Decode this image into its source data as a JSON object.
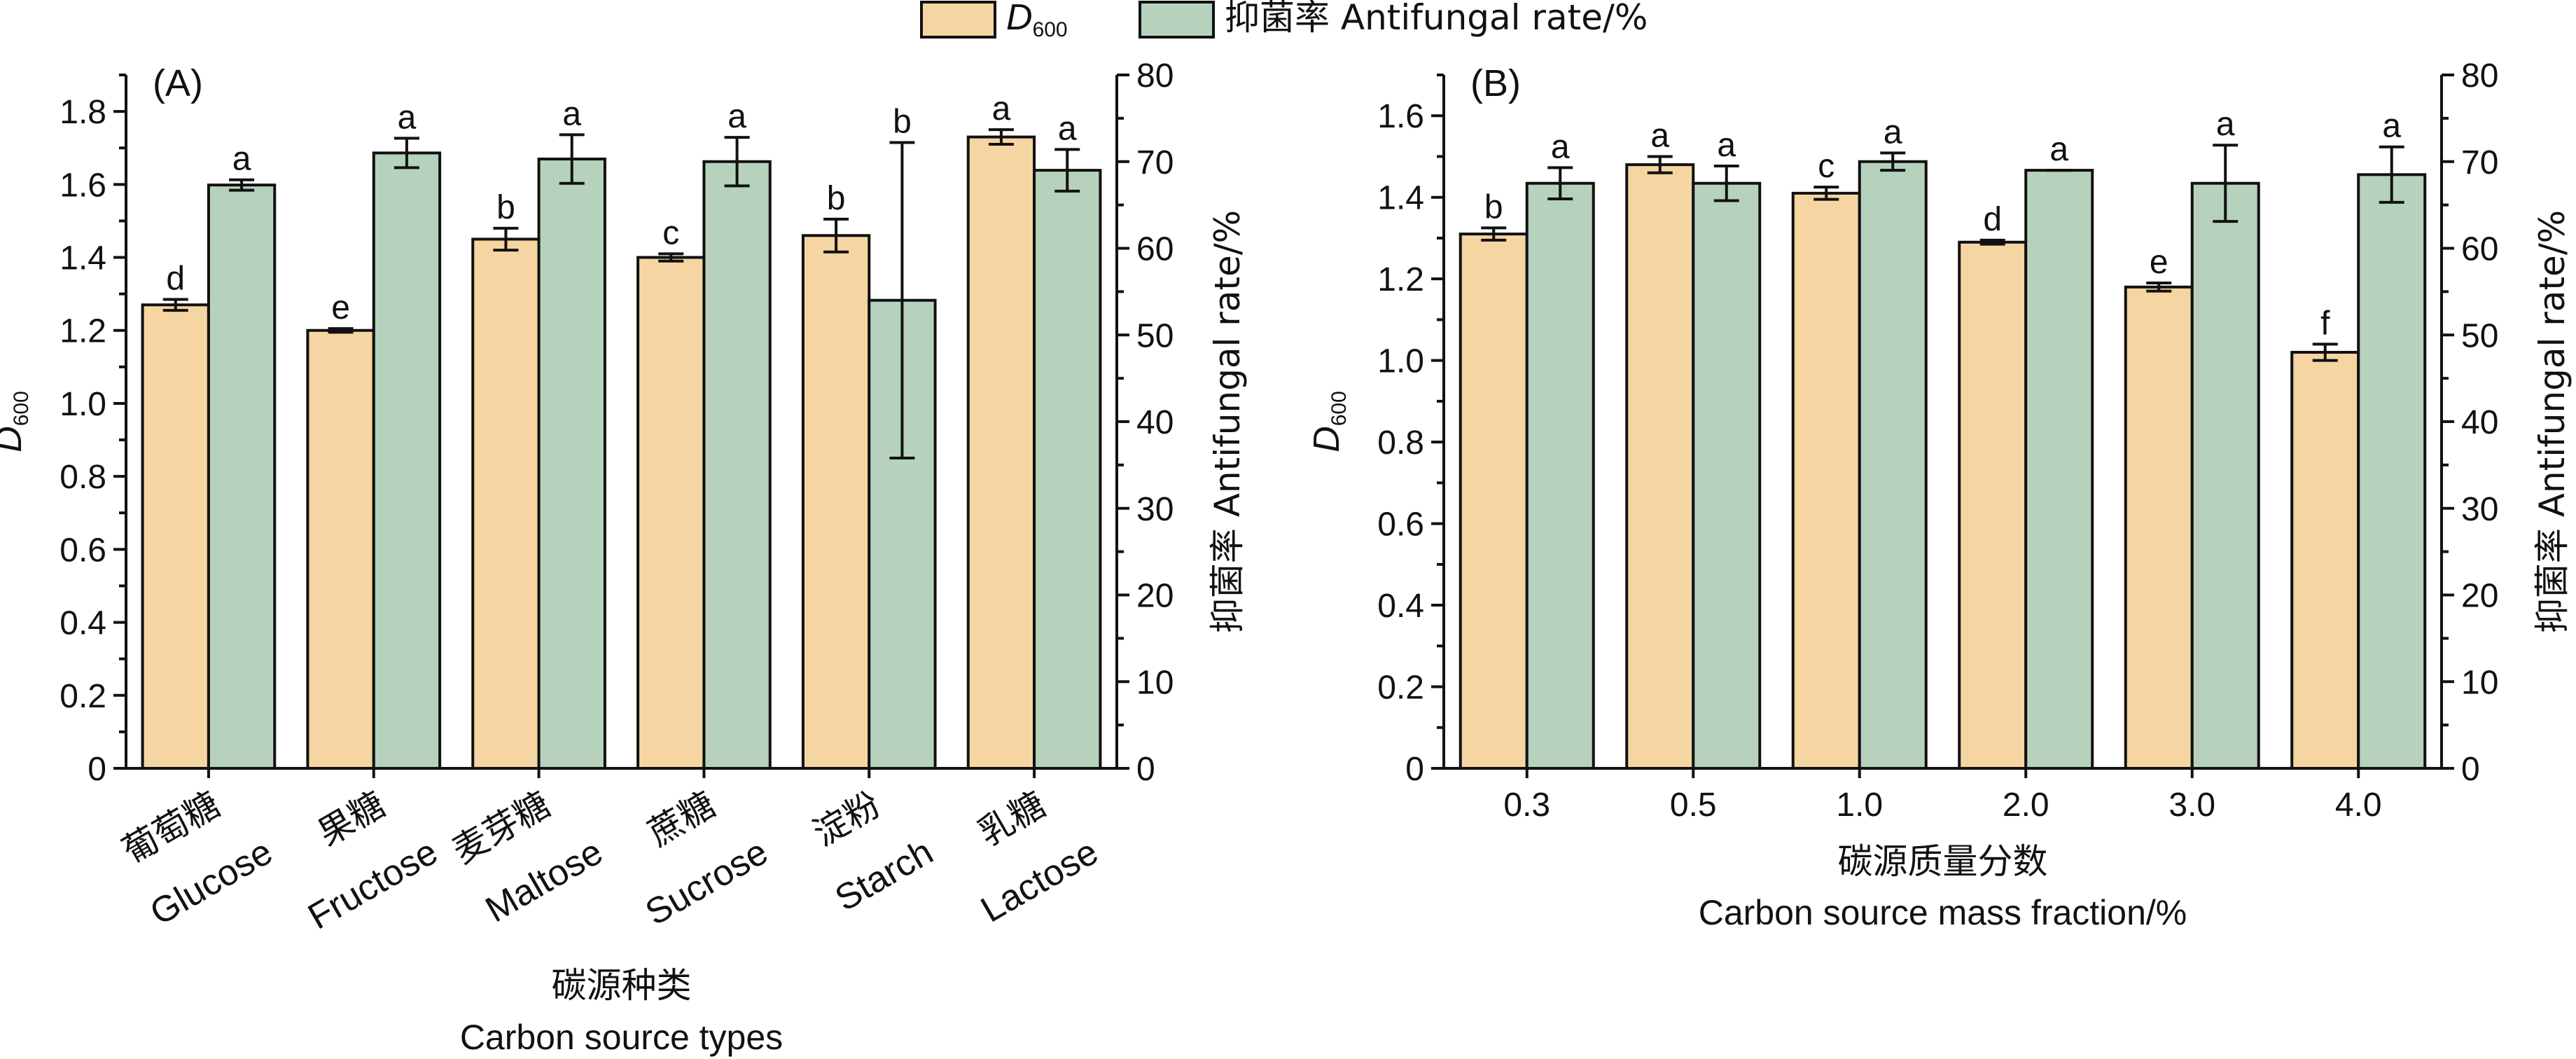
{
  "legend": {
    "position": "top-center",
    "items": [
      {
        "symbol": "D",
        "subscript": "600",
        "color": "#F5D5A2"
      },
      {
        "text": "抑菌率 Antifungal rate/%",
        "color": "#B6D2BC"
      }
    ]
  },
  "chart_data": [
    {
      "type": "bar",
      "panel_label": "(A)",
      "categories_cn": [
        "葡萄糖",
        "果糖",
        "麦芽糖",
        "蔗糖",
        "淀粉",
        "乳糖"
      ],
      "categories_en": [
        "Glucose",
        "Fructose",
        "Maltose",
        "Sucrose",
        "Starch",
        "Lactose"
      ],
      "xlabel_cn": "碳源种类",
      "xlabel_en": "Carbon source types",
      "ylabel_left": {
        "symbol": "D",
        "subscript": "600"
      },
      "ylabel_right": "抑菌率 Antifungal rate/%",
      "ylim_left": [
        0,
        1.9
      ],
      "yticks_left": [
        "0",
        "0.2",
        "0.4",
        "0.6",
        "0.8",
        "1.0",
        "1.2",
        "1.4",
        "1.6",
        "1.8"
      ],
      "ylim_right": [
        0,
        80
      ],
      "yticks_right": [
        "0",
        "10",
        "20",
        "30",
        "40",
        "50",
        "60",
        "70",
        "80"
      ],
      "series": [
        {
          "name": "D600",
          "axis": "left",
          "color": "#F5D5A2",
          "values": [
            1.27,
            1.2,
            1.45,
            1.4,
            1.46,
            1.73
          ],
          "errors": [
            0.015,
            0.005,
            0.03,
            0.01,
            0.045,
            0.02
          ],
          "letters": [
            "d",
            "e",
            "b",
            "c",
            "b",
            "a"
          ]
        },
        {
          "name": "抑菌率 Antifungal rate/%",
          "axis": "right",
          "color": "#B6D2BC",
          "values": [
            67.3,
            71.0,
            70.3,
            70.0,
            54.0,
            69.0
          ],
          "errors": [
            0.6,
            1.7,
            2.8,
            2.8,
            18.2,
            2.4
          ],
          "letters": [
            "a",
            "a",
            "a",
            "a",
            "b",
            "a"
          ]
        }
      ]
    },
    {
      "type": "bar",
      "panel_label": "(B)",
      "categories": [
        "0.3",
        "0.5",
        "1.0",
        "2.0",
        "3.0",
        "4.0"
      ],
      "xlabel_cn": "碳源质量分数",
      "xlabel_en": "Carbon source mass fraction/%",
      "ylabel_left": {
        "symbol": "D",
        "subscript": "600"
      },
      "ylabel_right": "抑菌率 Antifungal rate/%",
      "ylim_left": [
        0,
        1.7
      ],
      "yticks_left": [
        "0",
        "0.2",
        "0.4",
        "0.6",
        "0.8",
        "1.0",
        "1.2",
        "1.4",
        "1.6"
      ],
      "ylim_right": [
        0,
        80
      ],
      "yticks_right": [
        "0",
        "10",
        "20",
        "30",
        "40",
        "50",
        "60",
        "70",
        "80"
      ],
      "series": [
        {
          "name": "D600",
          "axis": "left",
          "color": "#F5D5A2",
          "values": [
            1.31,
            1.48,
            1.41,
            1.29,
            1.18,
            1.02
          ],
          "errors": [
            0.015,
            0.02,
            0.015,
            0.005,
            0.01,
            0.02
          ],
          "letters": [
            "b",
            "a",
            "c",
            "d",
            "e",
            "f"
          ]
        },
        {
          "name": "抑菌率 Antifungal rate/%",
          "axis": "right",
          "color": "#B6D2BC",
          "values": [
            67.5,
            67.5,
            70.0,
            69.0,
            67.5,
            68.5
          ],
          "errors": [
            1.8,
            2.0,
            1.0,
            0.0,
            4.4,
            3.2
          ],
          "letters": [
            "a",
            "a",
            "a",
            "a",
            "a",
            "a"
          ]
        }
      ]
    }
  ]
}
